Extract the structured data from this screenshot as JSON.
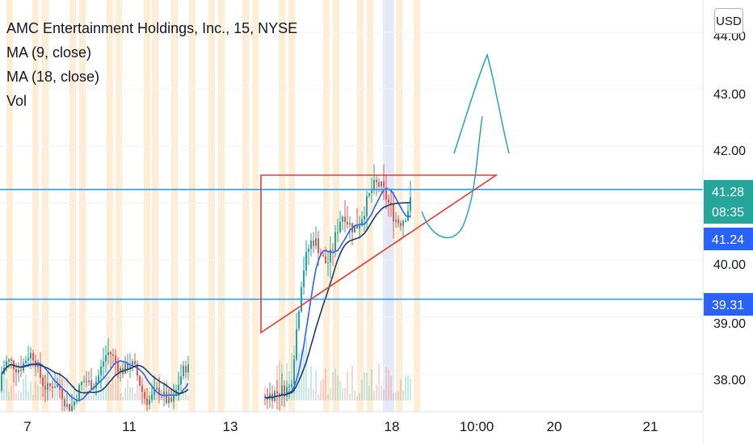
{
  "legend": {
    "title": "AMC Entertainment Holdings, Inc., 15, NYSE",
    "lines": [
      "MA (9, close)",
      "MA (18, close)",
      "Vol"
    ]
  },
  "currency_button": "USD",
  "colors": {
    "up": "#26a69a",
    "down": "#ef5350",
    "ma9": "#2962ff",
    "ma18": "#1e3a6e",
    "hline": "#2196f3",
    "triangle": "#e53935",
    "drawing": "#26a6b0",
    "session_orange": "#ffe0b2",
    "session_blue": "#dde6fb"
  },
  "chart_data": {
    "type": "candlestick",
    "symbol": "AMC",
    "interval": "15",
    "exchange": "NYSE",
    "x_tick_labels": [
      "7",
      "11",
      "13",
      "18",
      "10:00",
      "20",
      "21"
    ],
    "y_tick_labels": [
      "38.00",
      "39.00",
      "40.00",
      "41.00",
      "42.00",
      "43.00",
      "44.00"
    ],
    "ylim": [
      37.6,
      44.2
    ],
    "last_price": "41.28",
    "countdown": "08:35",
    "horizontal_lines": [
      {
        "value": 41.24,
        "label": "41.24"
      },
      {
        "value": 39.31,
        "label": "39.31"
      }
    ],
    "series_estimated": [
      {
        "segment": "7-11",
        "close_range": [
          37.5,
          38.6
        ]
      },
      {
        "segment": "13-18",
        "close_range": [
          37.6,
          41.6
        ]
      }
    ]
  }
}
